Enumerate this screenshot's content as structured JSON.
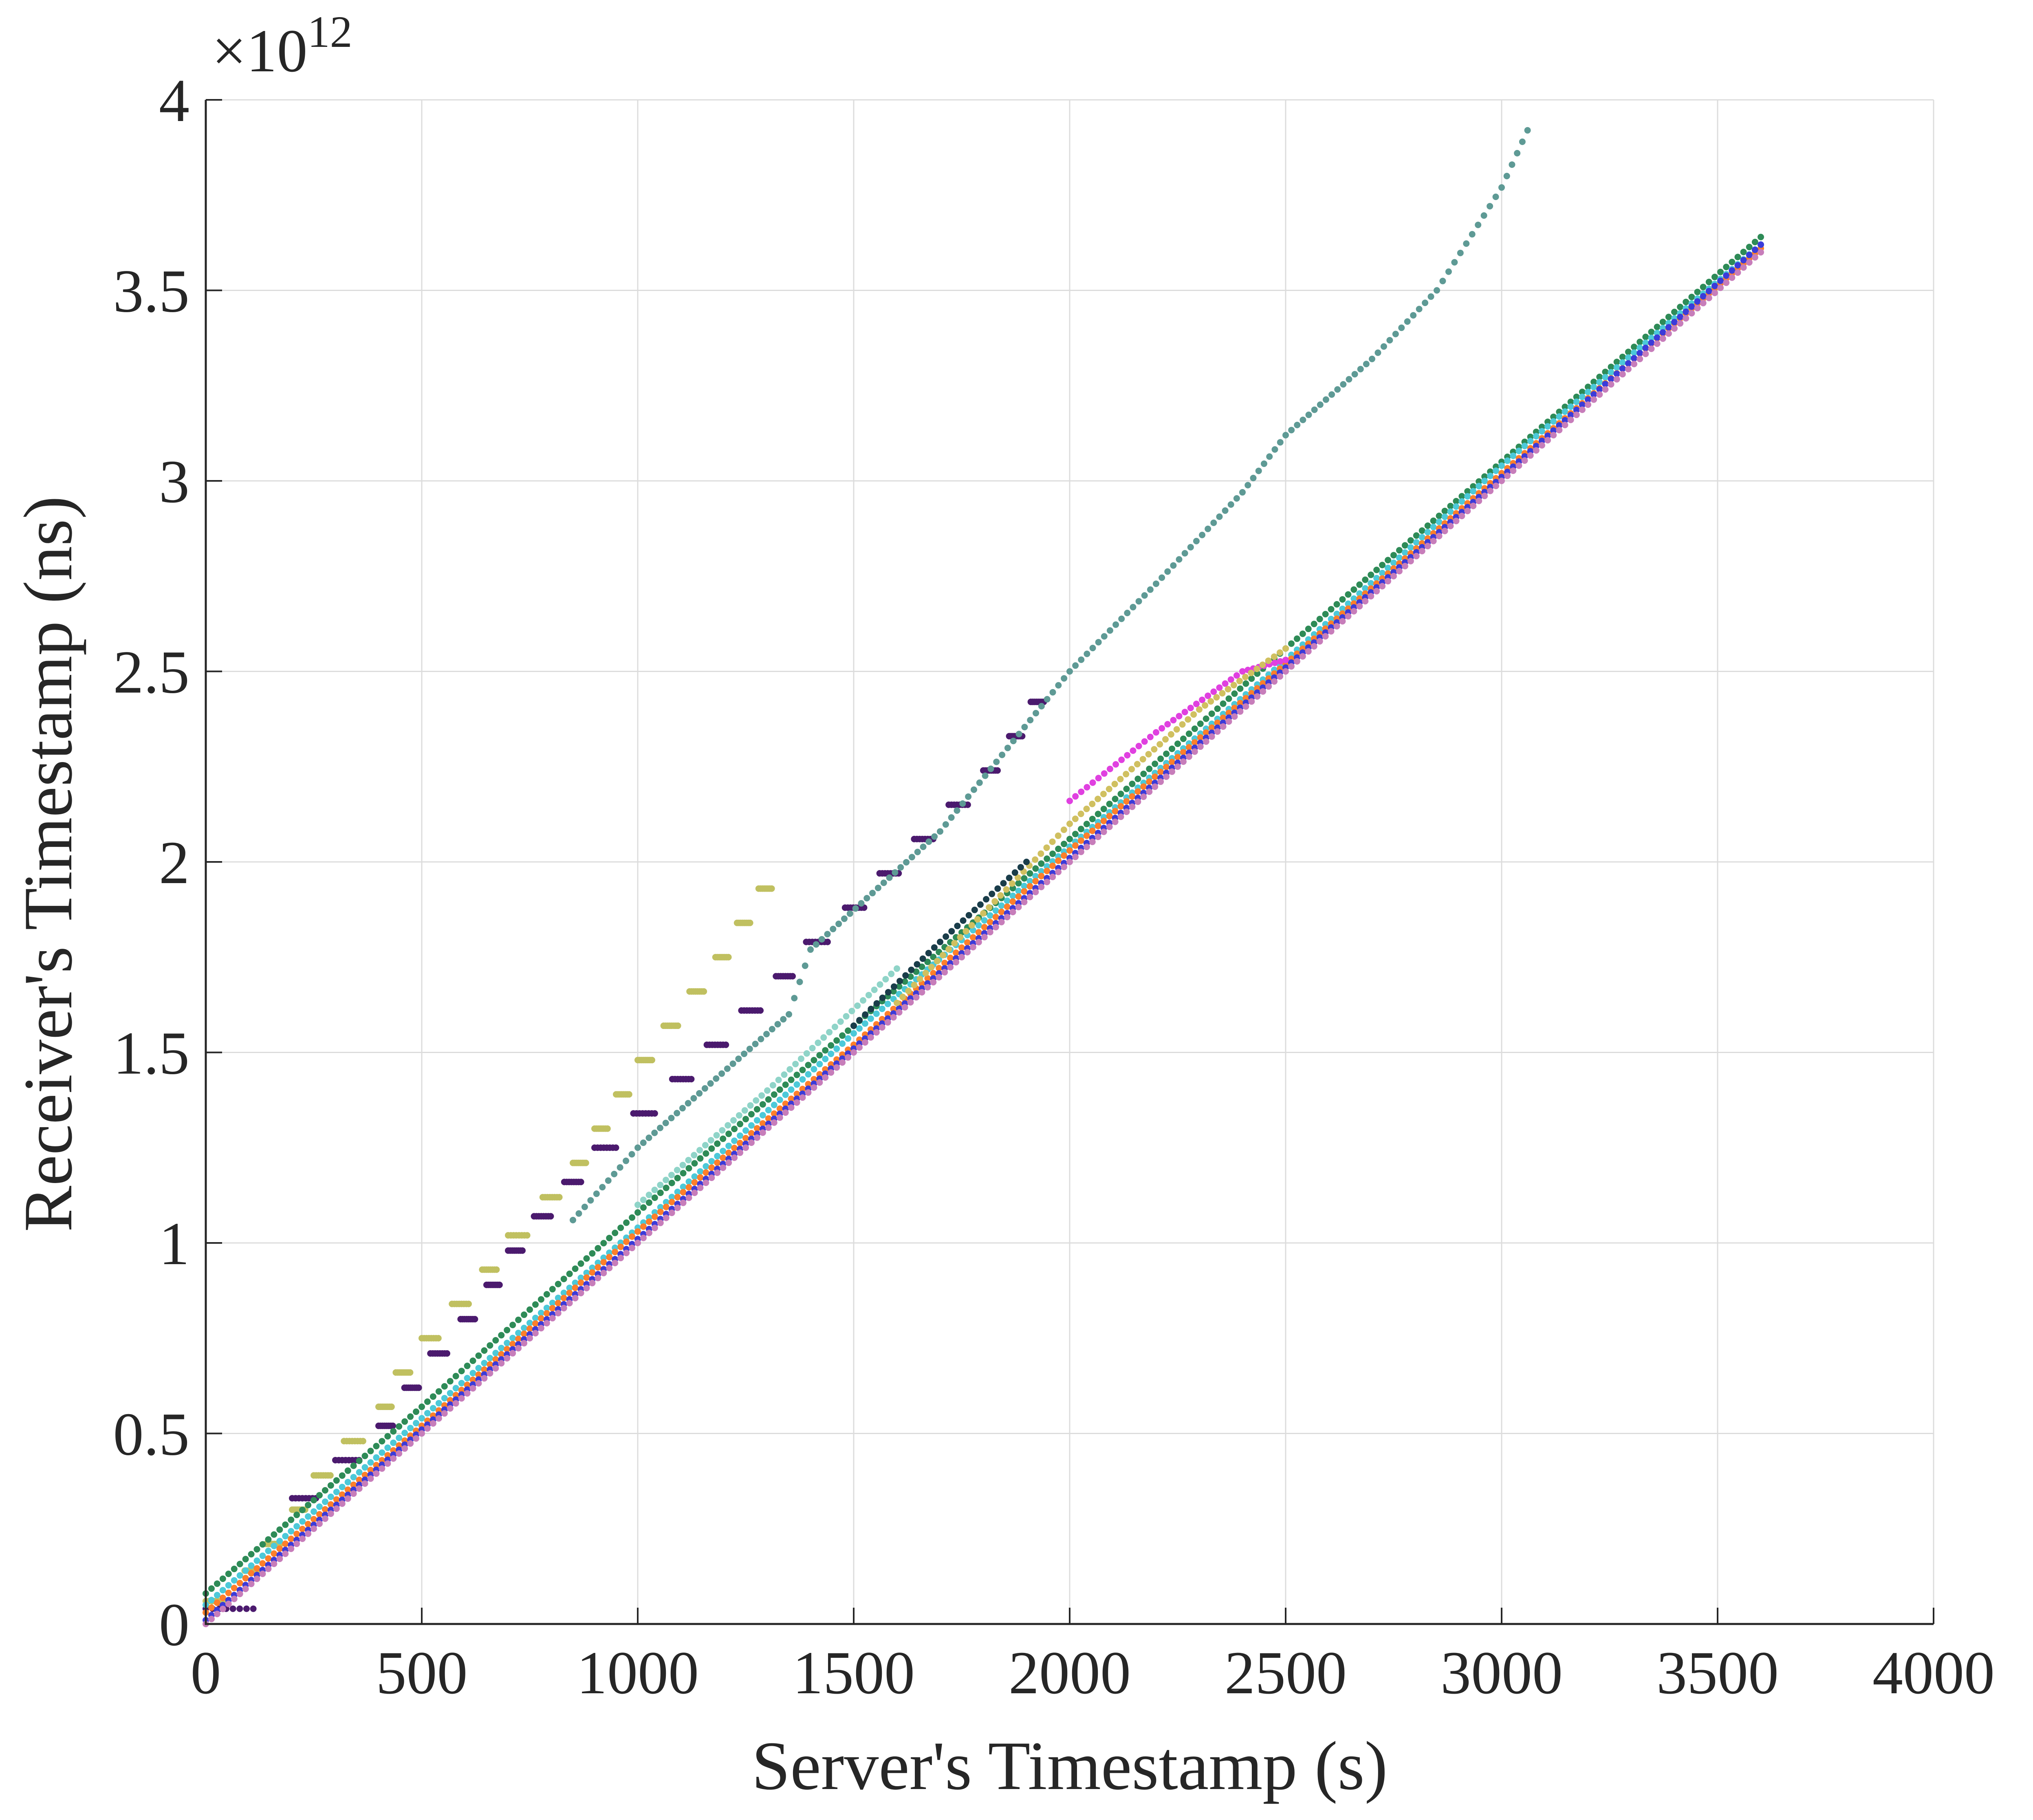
{
  "chart_data": {
    "type": "scatter",
    "title": "",
    "xlabel": "Server's Timestamp (s)",
    "ylabel": "Receiver's Timestamp (ns)",
    "xlim": [
      0,
      4000
    ],
    "ylim": [
      0,
      4
    ],
    "y_exponent_label": "×10",
    "y_exponent_power": "12",
    "x_ticks": [
      "0",
      "500",
      "1000",
      "1500",
      "2000",
      "2500",
      "3000",
      "3500",
      "4000"
    ],
    "y_ticks": [
      "0",
      "0.5",
      "1",
      "1.5",
      "2",
      "2.5",
      "3",
      "3.5",
      "4"
    ],
    "grid": true,
    "legend": "none",
    "series": [
      {
        "color": "#c0c060",
        "style": "steps",
        "points": [
          [
            0,
            0.06
          ],
          [
            90,
            0.14
          ],
          [
            140,
            0.21
          ],
          [
            200,
            0.3
          ],
          [
            250,
            0.39
          ],
          [
            320,
            0.48
          ],
          [
            400,
            0.57
          ],
          [
            440,
            0.66
          ],
          [
            500,
            0.75
          ],
          [
            570,
            0.84
          ],
          [
            640,
            0.93
          ],
          [
            700,
            1.02
          ],
          [
            780,
            1.12
          ],
          [
            850,
            1.21
          ],
          [
            900,
            1.3
          ],
          [
            950,
            1.39
          ],
          [
            1000,
            1.48
          ],
          [
            1060,
            1.57
          ],
          [
            1120,
            1.66
          ],
          [
            1180,
            1.75
          ],
          [
            1230,
            1.84
          ],
          [
            1280,
            1.93
          ]
        ]
      },
      {
        "color": "#4b1a6e",
        "style": "steps",
        "points": [
          [
            0,
            0.04
          ],
          [
            200,
            0.33
          ],
          [
            300,
            0.43
          ],
          [
            400,
            0.52
          ],
          [
            460,
            0.62
          ],
          [
            520,
            0.71
          ],
          [
            590,
            0.8
          ],
          [
            650,
            0.89
          ],
          [
            700,
            0.98
          ],
          [
            760,
            1.07
          ],
          [
            830,
            1.16
          ],
          [
            900,
            1.25
          ],
          [
            990,
            1.34
          ],
          [
            1080,
            1.43
          ],
          [
            1160,
            1.52
          ],
          [
            1240,
            1.61
          ],
          [
            1320,
            1.7
          ],
          [
            1390,
            1.79
          ],
          [
            1480,
            1.88
          ],
          [
            1560,
            1.97
          ],
          [
            1640,
            2.06
          ],
          [
            1720,
            2.15
          ],
          [
            1800,
            2.24
          ],
          [
            1860,
            2.33
          ],
          [
            1910,
            2.42
          ]
        ]
      },
      {
        "color": "#5e9a95",
        "style": "line",
        "points": [
          [
            850,
            1.06
          ],
          [
            1000,
            1.25
          ],
          [
            1350,
            1.6
          ],
          [
            1400,
            1.77
          ],
          [
            1700,
            2.08
          ],
          [
            2000,
            2.5
          ],
          [
            2200,
            2.73
          ],
          [
            2400,
            2.97
          ],
          [
            2500,
            3.12
          ],
          [
            2700,
            3.32
          ],
          [
            2850,
            3.5
          ],
          [
            3000,
            3.77
          ],
          [
            3060,
            3.92
          ]
        ]
      },
      {
        "color": "#2e8b57",
        "style": "line",
        "points": [
          [
            0,
            0.08
          ],
          [
            500,
            0.57
          ],
          [
            1000,
            1.08
          ],
          [
            1500,
            1.57
          ],
          [
            2000,
            2.06
          ],
          [
            2500,
            2.56
          ],
          [
            3000,
            3.05
          ],
          [
            3600,
            3.64
          ]
        ]
      },
      {
        "color": "#4cc9d9",
        "style": "line",
        "points": [
          [
            0,
            0.05
          ],
          [
            500,
            0.54
          ],
          [
            1000,
            1.04
          ],
          [
            1500,
            1.55
          ],
          [
            2000,
            2.04
          ],
          [
            2500,
            2.53
          ],
          [
            3000,
            3.04
          ],
          [
            3600,
            3.62
          ]
        ]
      },
      {
        "color": "#ff7f2a",
        "style": "line",
        "points": [
          [
            0,
            0.03
          ],
          [
            500,
            0.52
          ],
          [
            1000,
            1.03
          ],
          [
            1500,
            1.52
          ],
          [
            2000,
            2.03
          ],
          [
            2500,
            2.52
          ],
          [
            3000,
            3.02
          ],
          [
            3600,
            3.61
          ]
        ]
      },
      {
        "color": "#3b3bd9",
        "style": "line",
        "points": [
          [
            0,
            0.01
          ],
          [
            500,
            0.51
          ],
          [
            1000,
            1.01
          ],
          [
            1500,
            1.51
          ],
          [
            2000,
            2.01
          ],
          [
            2500,
            2.51
          ],
          [
            3000,
            3.01
          ],
          [
            3600,
            3.62
          ]
        ]
      },
      {
        "color": "#e040e0",
        "style": "line",
        "points": [
          [
            2000,
            2.16
          ],
          [
            2200,
            2.34
          ],
          [
            2400,
            2.5
          ],
          [
            2500,
            2.53
          ]
        ]
      },
      {
        "color": "#d0c060",
        "style": "line",
        "points": [
          [
            1600,
            1.63
          ],
          [
            2000,
            2.1
          ],
          [
            2300,
            2.4
          ],
          [
            2500,
            2.56
          ]
        ]
      },
      {
        "color": "#c77dba",
        "style": "line",
        "points": [
          [
            0,
            0.0
          ],
          [
            500,
            0.5
          ],
          [
            1000,
            1.0
          ],
          [
            1500,
            1.5
          ],
          [
            2000,
            2.0
          ],
          [
            2500,
            2.5
          ],
          [
            3000,
            3.0
          ],
          [
            3600,
            3.6
          ]
        ]
      },
      {
        "color": "#1a3d4a",
        "style": "line",
        "points": [
          [
            1500,
            1.57
          ],
          [
            1700,
            1.79
          ],
          [
            1900,
            2.0
          ]
        ]
      },
      {
        "color": "#8fd4c8",
        "style": "line",
        "points": [
          [
            1000,
            1.1
          ],
          [
            1300,
            1.4
          ],
          [
            1600,
            1.72
          ]
        ]
      }
    ]
  }
}
